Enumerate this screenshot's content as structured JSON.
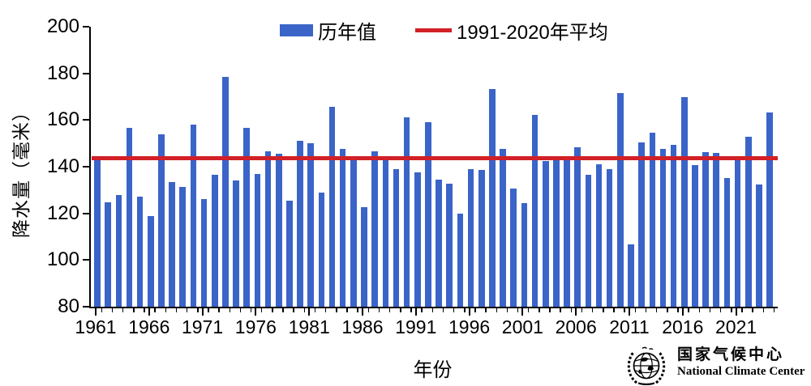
{
  "chart_data": {
    "type": "bar",
    "title": "",
    "xlabel": "年份",
    "ylabel": "降水量（毫米）",
    "years": [
      1961,
      1962,
      1963,
      1964,
      1965,
      1966,
      1967,
      1968,
      1969,
      1970,
      1971,
      1972,
      1973,
      1974,
      1975,
      1976,
      1977,
      1978,
      1979,
      1980,
      1981,
      1982,
      1983,
      1984,
      1985,
      1986,
      1987,
      1988,
      1989,
      1990,
      1991,
      1992,
      1993,
      1994,
      1995,
      1996,
      1997,
      1998,
      1999,
      2000,
      2001,
      2002,
      2003,
      2004,
      2005,
      2006,
      2007,
      2008,
      2009,
      2010,
      2011,
      2012,
      2013,
      2014,
      2015,
      2016,
      2017,
      2018,
      2019,
      2020,
      2021,
      2022,
      2023,
      2024
    ],
    "values": [
      143.9,
      124.8,
      127.8,
      156.5,
      127.0,
      118.8,
      154.0,
      133.3,
      131.2,
      158.2,
      126.2,
      136.6,
      178.5,
      134.2,
      156.6,
      137.0,
      146.6,
      145.4,
      125.5,
      151.0,
      150.2,
      129.0,
      165.8,
      147.6,
      143.6,
      122.5,
      146.6,
      143.5,
      139.0,
      161.2,
      137.6,
      159.0,
      134.6,
      132.7,
      119.8,
      138.8,
      138.5,
      173.4,
      147.6,
      130.5,
      124.3,
      162.2,
      142.5,
      144.6,
      144.0,
      148.4,
      136.6,
      141.2,
      139.0,
      171.5,
      106.6,
      150.4,
      154.6,
      147.5,
      149.4,
      170.0,
      140.8,
      146.1,
      145.9,
      135.2,
      144.1,
      152.8,
      132.2,
      163.2
    ],
    "ylim": [
      80,
      200
    ],
    "yticks": [
      80,
      100,
      120,
      140,
      160,
      180,
      200
    ],
    "xtick_years": [
      1961,
      1966,
      1971,
      1976,
      1981,
      1986,
      1991,
      1996,
      2001,
      2006,
      2011,
      2016,
      2021
    ],
    "grid": false,
    "legend": {
      "bar_label": "历年值",
      "line_label": "1991-2020年平均",
      "position": "top-center"
    },
    "reference_line": {
      "label": "1991-2020年平均",
      "value": 143.8
    },
    "colors": {
      "bar": "#3a64c8",
      "reference_line": "#d22027",
      "axis": "#000000",
      "text": "#000000"
    }
  },
  "footer_logo": {
    "name_cn": "国家气候中心",
    "name_en": "National Climate Center"
  }
}
